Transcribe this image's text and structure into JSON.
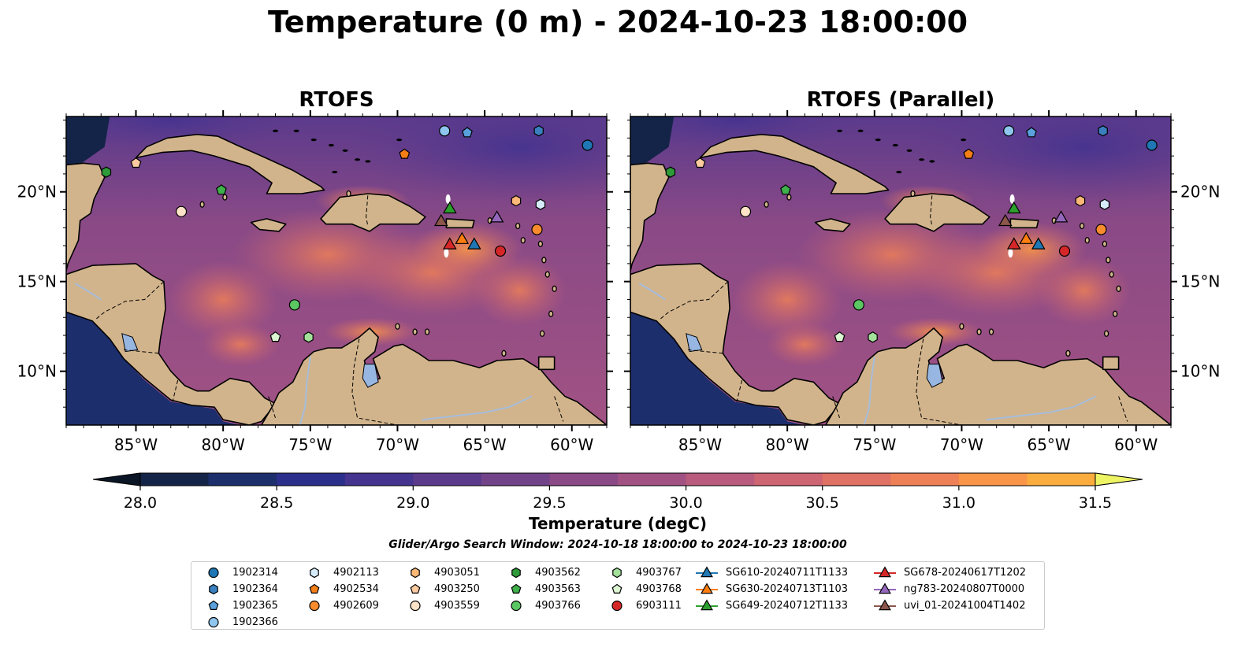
{
  "title": "Temperature (0 m) - 2024-10-23 18:00:00",
  "panels": [
    {
      "title": "RTOFS"
    },
    {
      "title": "RTOFS (Parallel)"
    }
  ],
  "colorbar": {
    "label": "Temperature (degC)",
    "min": 28.0,
    "max": 31.5,
    "step": 0.25,
    "ticks": [
      "28.0",
      "28.5",
      "29.0",
      "29.5",
      "30.0",
      "30.5",
      "31.0",
      "31.5"
    ],
    "extend": "both",
    "colors": [
      "#08192e",
      "#142448",
      "#1d2e6d",
      "#2c2e8c",
      "#44338f",
      "#5b3a8c",
      "#734389",
      "#8a4a86",
      "#a15283",
      "#b85b7c",
      "#ce6572",
      "#e07165",
      "#ee8058",
      "#f89548",
      "#fbac3e",
      "#f5c841",
      "#ecea58"
    ],
    "low_color": "#0a1525",
    "high_color": "#eef565"
  },
  "search_window": "Glider/Argo Search Window: 2024-10-18 18:00:00 to 2024-10-23 18:00:00",
  "chart_data": {
    "type": "heatmap",
    "description_axes": {
      "xlim": [
        -89,
        -58
      ],
      "ylim": [
        7,
        24.2
      ]
    },
    "x_ticks": [
      {
        "value": -85,
        "label": "85°W"
      },
      {
        "value": -80,
        "label": "80°W"
      },
      {
        "value": -75,
        "label": "75°W"
      },
      {
        "value": -70,
        "label": "70°W"
      },
      {
        "value": -65,
        "label": "65°W"
      },
      {
        "value": -60,
        "label": "60°W"
      }
    ],
    "y_ticks": [
      {
        "value": 10,
        "label": "10°N"
      },
      {
        "value": 15,
        "label": "15°N"
      },
      {
        "value": 20,
        "label": "20°N"
      }
    ],
    "argo_floats": [
      {
        "name": "1902314",
        "marker": "circle",
        "color": "#1f77b4",
        "lon": -59.1,
        "lat": 22.6
      },
      {
        "name": "1902364",
        "marker": "hexagon",
        "color": "#3a80bf",
        "lon": -61.9,
        "lat": 23.4
      },
      {
        "name": "1902365",
        "marker": "pentagon",
        "color": "#5aa0dc",
        "lon": -66.0,
        "lat": 23.3
      },
      {
        "name": "1902366",
        "marker": "circle",
        "color": "#8ec6ee",
        "lon": -67.3,
        "lat": 23.4
      },
      {
        "name": "4902113",
        "marker": "hexagon",
        "color": "#d7ecfb",
        "lon": -61.8,
        "lat": 19.3
      },
      {
        "name": "4902534",
        "marker": "pentagon",
        "color": "#f57f17",
        "lon": -69.6,
        "lat": 22.1
      },
      {
        "name": "4902609",
        "marker": "circle",
        "color": "#fb8c2e",
        "lon": -62.0,
        "lat": 17.9
      },
      {
        "name": "4903051",
        "marker": "hexagon",
        "color": "#fdb877",
        "lon": -63.2,
        "lat": 19.5
      },
      {
        "name": "4903250",
        "marker": "pentagon",
        "color": "#fdcba0",
        "lon": -85.0,
        "lat": 21.6
      },
      {
        "name": "4903559",
        "marker": "circle",
        "color": "#fee3c8",
        "lon": -82.4,
        "lat": 18.9
      },
      {
        "name": "4903562",
        "marker": "hexagon",
        "color": "#2e9a39",
        "lon": -86.7,
        "lat": 21.1
      },
      {
        "name": "4903563",
        "marker": "pentagon",
        "color": "#3fb04b",
        "lon": -80.1,
        "lat": 20.1
      },
      {
        "name": "4903766",
        "marker": "circle",
        "color": "#5bc763",
        "lon": -75.9,
        "lat": 13.7
      },
      {
        "name": "4903767",
        "marker": "hexagon",
        "color": "#a3e19b",
        "lon": -75.1,
        "lat": 11.9
      },
      {
        "name": "4903768",
        "marker": "pentagon",
        "color": "#dcf5d2",
        "lon": -77.0,
        "lat": 11.9
      },
      {
        "name": "6903111",
        "marker": "circle",
        "color": "#d62728",
        "lon": -64.1,
        "lat": 16.7
      }
    ],
    "gliders": [
      {
        "name": "SG610-20240711T1133",
        "color": "#1f77b4",
        "lon": -65.6,
        "lat": 17.1
      },
      {
        "name": "SG630-20240713T1103",
        "color": "#ff7f0e",
        "lon": -66.3,
        "lat": 17.4
      },
      {
        "name": "SG649-20240712T1133",
        "color": "#2ca02c",
        "lon": -67.0,
        "lat": 19.1
      },
      {
        "name": "SG678-20240617T1202",
        "color": "#d62728",
        "lon": -67.0,
        "lat": 17.1
      },
      {
        "name": "ng783-20240807T0000",
        "color": "#9467bd",
        "lon": -64.3,
        "lat": 18.6
      },
      {
        "name": "uvi_01-20241004T1402",
        "color": "#8c564b",
        "lon": -67.5,
        "lat": 18.4
      }
    ]
  }
}
